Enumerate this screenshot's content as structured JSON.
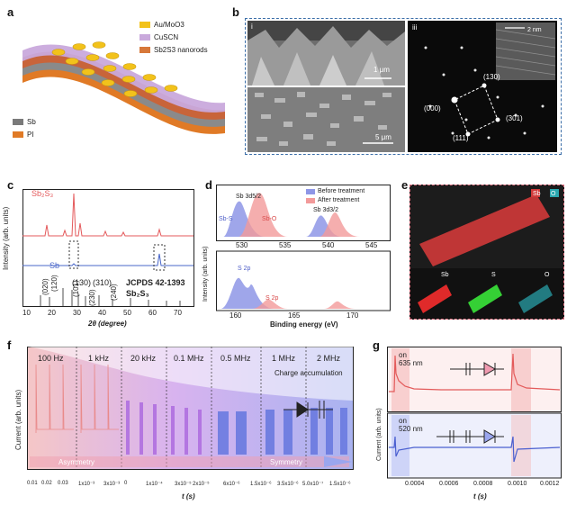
{
  "panels": {
    "a": {
      "letter": "a",
      "legend": [
        "Au/MoO3",
        "CuSCN",
        "Sb2S3 nanorods",
        "Sb",
        "PI"
      ],
      "colors": {
        "au": "#f2c21b",
        "cuscn": "#c9a9dc",
        "sb2s3": "#d7783a",
        "sb": "#7a7a7a",
        "pi": "#e07a26"
      }
    },
    "b": {
      "letter": "b",
      "sub_i": "i",
      "sub_iii": "iii",
      "scale_top": "1 μm",
      "scale_bottom": "5 μm",
      "scale_inset": "2 nm",
      "spots": [
        "(130)",
        "(000)",
        "(301)",
        "(111)"
      ]
    },
    "c": {
      "letter": "c",
      "series_sb2s3": "Sb₂S₃",
      "series_sb": "Sb",
      "ref_card": "JCPDS 42-1393",
      "ref_compound": "Sb₂S₃",
      "peaks": [
        "(020)",
        "(120)",
        "(130)",
        "(310)",
        "(101)",
        "(230)",
        "(240)"
      ],
      "ylabel": "Intensity (arb. units)",
      "xlabel": "2θ (degree)",
      "xticks": [
        "10",
        "20",
        "30",
        "40",
        "50",
        "60",
        "70"
      ]
    },
    "d": {
      "letter": "d",
      "legend_before": "Before treatment",
      "legend_after": "After treatment",
      "top_labels": [
        "Sb 3d5/2",
        "Sb-S",
        "Sb-O",
        "Sb 3d3/2"
      ],
      "top_xticks": [
        "530",
        "535",
        "540",
        "545"
      ],
      "bottom_labels": [
        "S 2p",
        "S 2p"
      ],
      "bottom_xticks": [
        "160",
        "165",
        "170"
      ],
      "ylabel": "Intensity (arb. units)",
      "xlabel": "Binding energy (eV)"
    },
    "e": {
      "letter": "e",
      "legend": [
        "Sb",
        "O"
      ],
      "maps": [
        "Sb",
        "S",
        "O"
      ]
    },
    "f": {
      "letter": "f",
      "freqs": [
        "100 Hz",
        "1 kHz",
        "20 kHz",
        "0.1 MHz",
        "0.5 MHz",
        "1 MHz",
        "2 MHz"
      ],
      "charge_label": "Charge accumulation",
      "asym_label": "Asymmetry",
      "sym_label": "Symmetry",
      "ylabel": "Current (arb. units)",
      "xlabel": "t (s)",
      "xticks": [
        "0.01",
        "0.02",
        "0.03",
        "1x10⁻³",
        "3x10⁻³",
        "0",
        "1x10⁻⁴",
        "3x10⁻⁵",
        "2x10⁻⁵",
        "6x10⁻⁶",
        "1.5x10⁻⁶",
        "3.5x10⁻⁶",
        "5.0x10⁻⁷",
        "1.5x10⁻⁶"
      ]
    },
    "g": {
      "letter": "g",
      "top_on": "on",
      "top_wl": "635 nm",
      "bottom_on": "on",
      "bottom_wl": "520 nm",
      "ylabel": "Current (arb. units)",
      "xlabel": "t (s)",
      "xticks": [
        "0.0004",
        "0.0006",
        "0.0008",
        "0.0010",
        "0.0012"
      ]
    }
  }
}
